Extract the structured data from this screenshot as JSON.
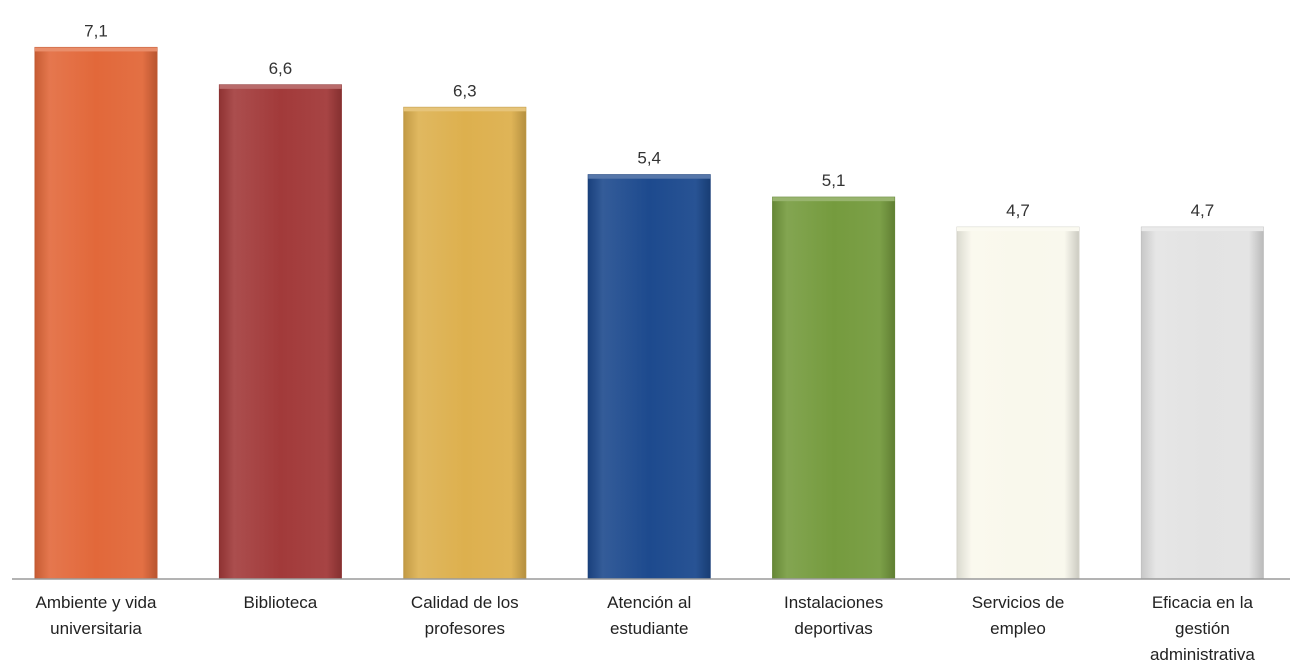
{
  "chart_data": {
    "type": "bar",
    "title": "",
    "xlabel": "",
    "ylabel": "",
    "ylim": [
      0,
      7.6
    ],
    "grid": false,
    "legend": "none",
    "categories": [
      [
        "Ambiente y vida",
        "universitaria"
      ],
      [
        "Biblioteca"
      ],
      [
        "Calidad de los",
        "profesores"
      ],
      [
        "Atención al",
        "estudiante"
      ],
      [
        "Instalaciones",
        "deportivas"
      ],
      [
        "Servicios de",
        "empleo"
      ],
      [
        "Eficacia en la",
        "gestión",
        "administrativa"
      ]
    ],
    "values": [
      7.1,
      6.6,
      6.3,
      5.4,
      5.1,
      4.7,
      4.7
    ],
    "value_labels": [
      "7,1",
      "6,6",
      "6,3",
      "5,4",
      "5,1",
      "4,7",
      "4,7"
    ],
    "colors": [
      "#E2683A",
      "#A23A3A",
      "#DDB04E",
      "#1D4A8E",
      "#759B3E",
      "#F9F8EC",
      "#E3E3E3"
    ]
  }
}
